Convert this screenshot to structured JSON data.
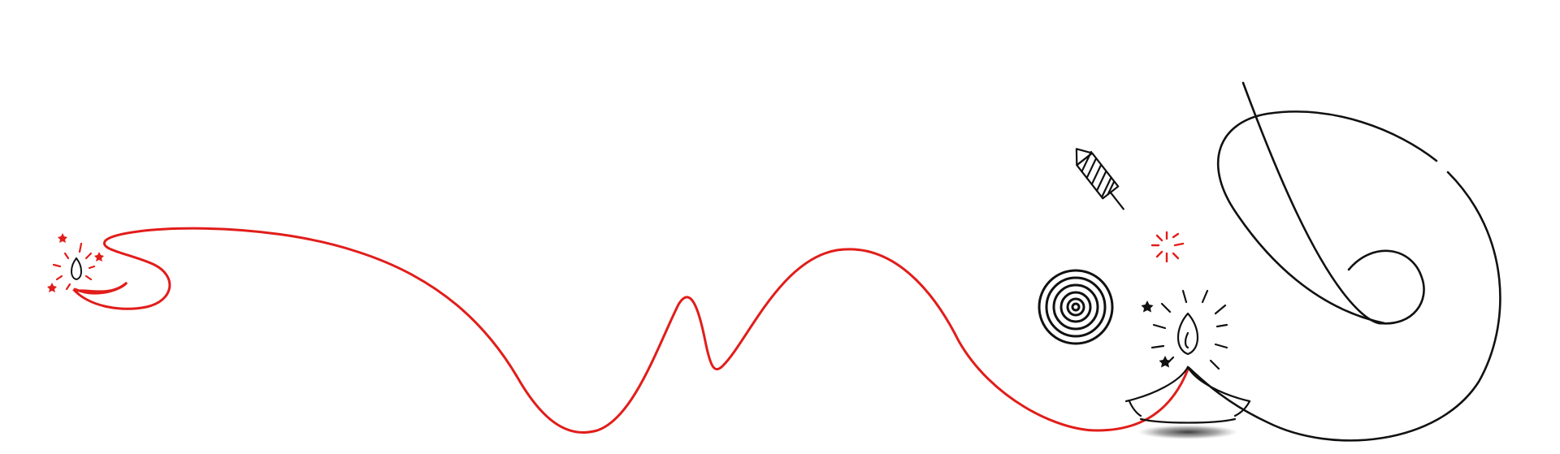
{
  "colors": {
    "background": "#ffffff",
    "accent_red": "#e11d1a",
    "ink": "#111111",
    "shadow": "#2a2a2a"
  },
  "illustration": {
    "elements": [
      "small-diya-icon",
      "red-fuse-line",
      "sparkle-burst-icon",
      "rocket-firecracker-icon",
      "red-spark-icon",
      "spiral-chakri-icon",
      "large-diya-icon",
      "decorative-swirl-icon",
      "diya-shadow"
    ]
  }
}
